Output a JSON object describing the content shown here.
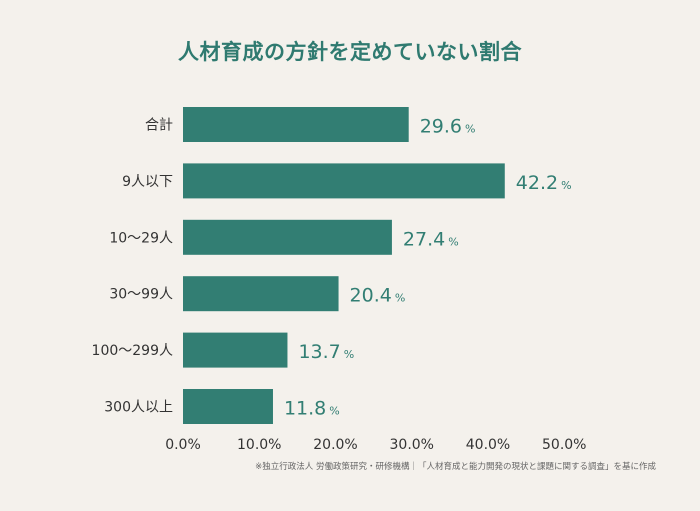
{
  "chart_data": {
    "type": "bar",
    "orientation": "horizontal",
    "title": "人材育成の方針を定めていない割合",
    "categories": [
      "合計",
      "9人以下",
      "10〜29人",
      "30〜99人",
      "100〜299人",
      "300人以上"
    ],
    "values": [
      29.6,
      42.2,
      27.4,
      20.4,
      13.7,
      11.8
    ],
    "value_unit": "%",
    "xlim": [
      0,
      50
    ],
    "xticks": [
      "0.0%",
      "10.0%",
      "20.0%",
      "30.0%",
      "40.0%",
      "50.0%"
    ],
    "grid": false,
    "bar_color": "#327e73",
    "label_color": "#327e73",
    "text_color": "#333333"
  },
  "source_note": "※独立行政法人 労働政策研究・研修機構｜「人材育成と能力開発の現状と課題に関する調査」を基に作成"
}
